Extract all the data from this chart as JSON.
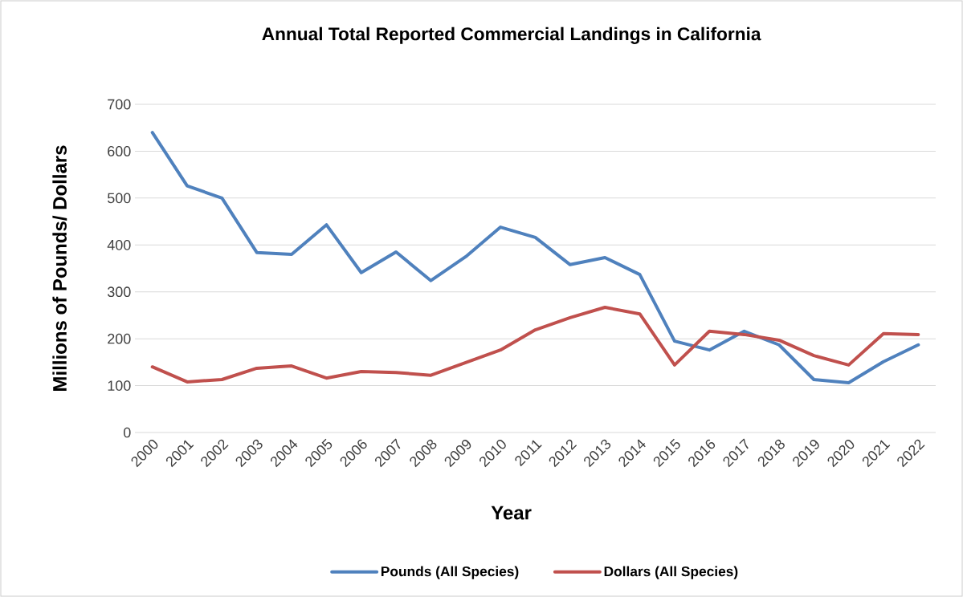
{
  "chart_data": {
    "type": "line",
    "title": "Annual Total Reported Commercial Landings in California",
    "xlabel": "Year",
    "ylabel": "Millions of Pounds/ Dollars",
    "categories": [
      "2000",
      "2001",
      "2002",
      "2003",
      "2004",
      "2005",
      "2006",
      "2007",
      "2008",
      "2009",
      "2010",
      "2011",
      "2012",
      "2013",
      "2014",
      "2015",
      "2016",
      "2017",
      "2018",
      "2019",
      "2020",
      "2021",
      "2022"
    ],
    "series": [
      {
        "name": "Pounds (All Species)",
        "color": "#4f81bd",
        "values": [
          640,
          526,
          500,
          384,
          380,
          443,
          341,
          385,
          324,
          375,
          438,
          416,
          358,
          373,
          337,
          195,
          176,
          216,
          187,
          113,
          106,
          151,
          187
        ]
      },
      {
        "name": "Dollars (All Species)",
        "color": "#c0504d",
        "values": [
          140,
          108,
          113,
          137,
          142,
          116,
          130,
          128,
          122,
          149,
          176,
          219,
          245,
          267,
          253,
          144,
          216,
          209,
          197,
          164,
          144,
          211,
          209
        ]
      }
    ],
    "ylim": [
      0,
      700
    ],
    "yticks": [
      0,
      100,
      200,
      300,
      400,
      500,
      600,
      700
    ],
    "grid": "y",
    "legend": "bottom",
    "marker": "none"
  }
}
